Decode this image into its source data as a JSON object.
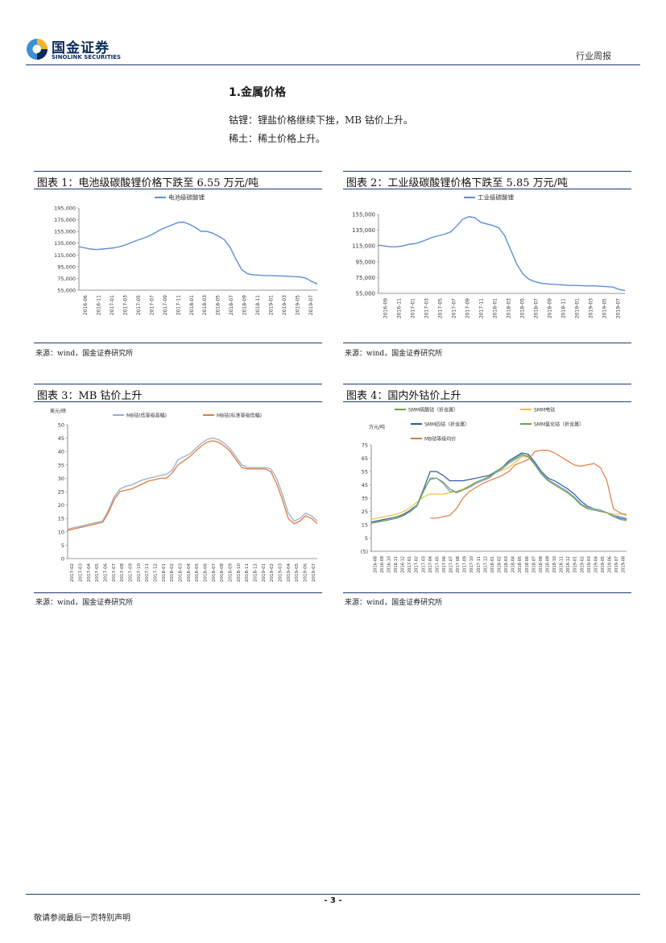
{
  "header": {
    "logo_cn": "国金证券",
    "logo_en": "SINOLINK SECURITIES",
    "tag": "行业周报",
    "colors": {
      "brand": "#0b2a5c",
      "accent": "#3a8fd6"
    }
  },
  "section": {
    "title": "1.金属价格",
    "para1": "钴锂：锂盐价格继续下挫，MB 钴价上升。",
    "para2": "稀土：稀土价格上升。"
  },
  "panels": [
    {
      "title": "图表 1：电池级碳酸锂价格下跌至 6.55 万元/吨",
      "source": "来源：wind，国金证券研究所"
    },
    {
      "title": "图表 2：工业级碳酸锂价格下跌至 5.85 万元/吨",
      "source": "来源：wind，国金证券研究所"
    },
    {
      "title": "图表 3：MB 钴价上升",
      "source": "来源：wind，国金证券研究所"
    },
    {
      "title": "图表 4：国内外钴价上升",
      "source": "来源：wind，国金证券研究所"
    }
  ],
  "chart_data": [
    {
      "type": "line",
      "legend": [
        "电池级碳酸锂"
      ],
      "ylim": [
        55000,
        195000
      ],
      "yticks": [
        "55,000",
        "75,000",
        "95,000",
        "115,000",
        "135,000",
        "155,000",
        "175,000",
        "195,000"
      ],
      "xticks": [
        "2016-06",
        "2016-11",
        "2017-01",
        "2017-03",
        "2017-05",
        "2017-07",
        "2017-09",
        "2017-11",
        "2018-01",
        "2018-03",
        "2018-05",
        "2018-07",
        "2018-09",
        "2018-11",
        "2019-01",
        "2019-03",
        "2019-05",
        "2019-07"
      ],
      "series": [
        {
          "name": "电池级碳酸锂",
          "color": "#5b8fd4",
          "values": [
            129000,
            127000,
            125000,
            124000,
            125000,
            126000,
            127000,
            129000,
            132000,
            136000,
            140000,
            143000,
            147000,
            152000,
            158000,
            162000,
            166000,
            170000,
            171000,
            167000,
            162000,
            155000,
            155000,
            152000,
            147000,
            141000,
            128000,
            108000,
            90000,
            83000,
            81000,
            80500,
            80000,
            79800,
            79500,
            79200,
            78600,
            78000,
            77500,
            75500,
            70000,
            65500
          ]
        }
      ]
    },
    {
      "type": "line",
      "legend": [
        "工业级碳酸锂"
      ],
      "ylim": [
        55000,
        155000
      ],
      "yticks": [
        "55,000",
        "75,000",
        "95,000",
        "115,000",
        "135,000",
        "155,000"
      ],
      "xticks": [
        "2016-09",
        "2016-11",
        "2017-01",
        "2017-03",
        "2017-05",
        "2017-07",
        "2017-09",
        "2017-11",
        "2018-01",
        "2018-03",
        "2018-05",
        "2018-07",
        "2018-09",
        "2018-11",
        "2019-01",
        "2019-03",
        "2019-05",
        "2019-07"
      ],
      "series": [
        {
          "name": "工业级碳酸锂",
          "color": "#5b8fd4",
          "values": [
            116000,
            115000,
            114000,
            114000,
            115000,
            117000,
            118000,
            120000,
            123000,
            126000,
            128000,
            130000,
            133000,
            140000,
            149000,
            152000,
            151000,
            145000,
            143000,
            141000,
            138000,
            128000,
            110000,
            92000,
            80000,
            73000,
            70000,
            68000,
            67000,
            66500,
            66000,
            65500,
            65000,
            65000,
            64800,
            64500,
            64500,
            64000,
            63500,
            63000,
            60000,
            58500
          ]
        }
      ]
    },
    {
      "type": "line",
      "ylabel": "美元/磅",
      "ylim": [
        0,
        50
      ],
      "yticks": [
        "0",
        "5",
        "10",
        "15",
        "20",
        "25",
        "30",
        "35",
        "40",
        "45",
        "50"
      ],
      "xticks": [
        "2017-02",
        "2017-03",
        "2017-04",
        "2017-05",
        "2017-06",
        "2017-07",
        "2017-08",
        "2017-09",
        "2017-10",
        "2017-11",
        "2017-12",
        "2018-01",
        "2018-02",
        "2018-03",
        "2018-04",
        "2018-05",
        "2018-06",
        "2018-07",
        "2018-08",
        "2018-09",
        "2018-10",
        "2018-11",
        "2018-12",
        "2019-01",
        "2019-02",
        "2019-03",
        "2019-04",
        "2019-05",
        "2019-06",
        "2019-07"
      ],
      "series": [
        {
          "name": "MB钴(低等级高幅)",
          "color": "#9aaccc",
          "values": [
            11,
            11.5,
            12,
            12.5,
            13,
            13.5,
            14,
            18,
            23,
            26,
            27,
            27.5,
            28.5,
            29.5,
            30,
            30.5,
            31,
            31.5,
            33,
            37,
            38,
            39,
            41,
            43,
            44.5,
            45,
            44.5,
            43,
            41,
            38,
            35,
            34,
            34,
            34,
            34,
            33.5,
            30,
            24,
            17,
            14,
            15,
            17,
            16,
            14
          ]
        },
        {
          "name": "MB钴(标准等级低幅)",
          "color": "#e07b3e",
          "values": [
            10.5,
            11,
            11.5,
            12,
            12.5,
            13,
            13.5,
            17,
            22,
            25,
            25.5,
            26,
            27,
            28,
            29,
            29.5,
            30,
            30,
            32,
            35,
            36.5,
            38,
            40,
            42,
            43.5,
            44,
            43.5,
            42,
            40,
            37,
            34,
            33.5,
            33.5,
            33.5,
            33.5,
            32.5,
            28,
            22,
            15,
            13,
            14,
            16,
            15,
            13
          ]
        }
      ]
    },
    {
      "type": "line",
      "ylabel": "万元/吨",
      "ylim": [
        -5,
        75
      ],
      "yticks": [
        "(5)",
        "5",
        "15",
        "25",
        "35",
        "45",
        "55",
        "65",
        "75"
      ],
      "xticks": [
        "2016-08",
        "2016-09",
        "2016-10",
        "2016-11",
        "2016-12",
        "2017-01",
        "2017-02",
        "2017-03",
        "2017-04",
        "2017-05",
        "2017-06",
        "2017-07",
        "2017-08",
        "2017-09",
        "2017-10",
        "2017-11",
        "2017-12",
        "2018-01",
        "2018-02",
        "2018-03",
        "2018-04",
        "2018-05",
        "2018-06",
        "2018-07",
        "2018-08",
        "2018-09",
        "2018-10",
        "2018-11",
        "2018-12",
        "2019-01",
        "2019-02",
        "2019-03",
        "2019-04",
        "2019-05",
        "2019-06",
        "2019-07",
        "2019-08"
      ],
      "series": [
        {
          "name": "SMM四钴（折金属）",
          "color": "#2f5aa8",
          "values": [
            17,
            18,
            19,
            20,
            21,
            23,
            26,
            30,
            42,
            55,
            55,
            52,
            48,
            48,
            48,
            49,
            50,
            51,
            52,
            55,
            58,
            63,
            66,
            69,
            68,
            62,
            55,
            50,
            48,
            45,
            42,
            38,
            33,
            29,
            27,
            26,
            24,
            22,
            20,
            19
          ]
        },
        {
          "name": "SMM电钴",
          "color": "#f2c233",
          "values": [
            19,
            20,
            21,
            22,
            23,
            25,
            28,
            32,
            36,
            38,
            38,
            38,
            39,
            40,
            42,
            44,
            46,
            48,
            51,
            54,
            56,
            58,
            62,
            66,
            66,
            60,
            54,
            49,
            45,
            42,
            39,
            35,
            30,
            27,
            26,
            25,
            24,
            23,
            23,
            23
          ]
        },
        {
          "name": "SMM硫酸钴（折金属）",
          "color": "#7aa1d6",
          "values": [
            16,
            17,
            18,
            19,
            20,
            22,
            25,
            30,
            41,
            49,
            50,
            46,
            40,
            40,
            41,
            43,
            46,
            48,
            50,
            54,
            57,
            61,
            64,
            67,
            67,
            61,
            54,
            49,
            46,
            43,
            40,
            36,
            31,
            28,
            27,
            26,
            24,
            22,
            21,
            20
          ]
        },
        {
          "name": "SMM氯化钴（折金属）",
          "color": "#6fa04a",
          "values": [
            16,
            17,
            18,
            19,
            20,
            22,
            25,
            29,
            40,
            50,
            50,
            47,
            42,
            39,
            41,
            44,
            47,
            49,
            51,
            55,
            58,
            62,
            65,
            68,
            66,
            60,
            53,
            48,
            45,
            42,
            39,
            35,
            30,
            27,
            26,
            25,
            24,
            21,
            19,
            18
          ]
        },
        {
          "name": "MB钴等级均价",
          "color": "#e07b3e",
          "values": [
            null,
            null,
            null,
            null,
            null,
            null,
            null,
            null,
            null,
            20,
            20,
            21,
            22,
            27,
            35,
            40,
            43,
            46,
            48,
            50,
            52,
            55,
            60,
            62,
            64,
            70,
            71,
            71,
            69,
            66,
            63,
            60,
            59,
            60,
            61,
            58,
            48,
            27,
            24,
            22
          ]
        }
      ]
    }
  ],
  "footer": {
    "page_number": "- 3 -",
    "disclaimer": "敬请参阅最后一页特别声明"
  }
}
